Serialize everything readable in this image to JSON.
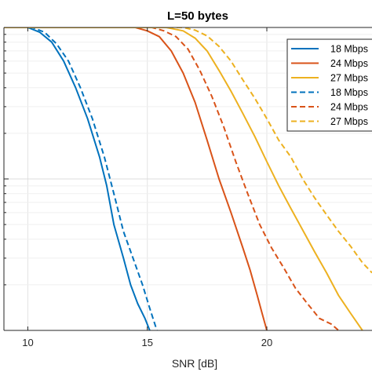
{
  "chart_data": {
    "type": "line",
    "title": "L=50 bytes",
    "xlabel": "SNR [dB]",
    "ylabel": "",
    "xlim": [
      9,
      24.4
    ],
    "ylim_log10": [
      -2,
      0
    ],
    "y_scale": "log",
    "x_ticks": [
      10,
      15,
      20
    ],
    "grid": true,
    "legend_position": "top-right",
    "series": [
      {
        "name": "18 Mbps",
        "color": "#0072BD",
        "style": "solid",
        "x": [
          9,
          10.0,
          10.5,
          11.0,
          11.5,
          12.0,
          12.5,
          13.0,
          13.3,
          13.6,
          14.0,
          14.3,
          14.6,
          14.9,
          15.1
        ],
        "y": [
          1,
          1,
          0.93,
          0.8,
          0.6,
          0.4,
          0.25,
          0.14,
          0.09,
          0.05,
          0.03,
          0.02,
          0.015,
          0.012,
          0.01
        ]
      },
      {
        "name": "24 Mbps",
        "color": "#D95319",
        "style": "solid",
        "x": [
          9,
          14.5,
          15.0,
          15.5,
          16.0,
          16.5,
          17.0,
          17.5,
          18.0,
          18.5,
          19.0,
          19.3,
          19.6,
          19.8,
          20.0
        ],
        "y": [
          1,
          1,
          0.95,
          0.87,
          0.7,
          0.5,
          0.32,
          0.18,
          0.1,
          0.06,
          0.035,
          0.025,
          0.017,
          0.013,
          0.01
        ]
      },
      {
        "name": "27 Mbps",
        "color": "#EDB120",
        "style": "solid",
        "x": [
          9,
          15.8,
          16.5,
          17.0,
          17.5,
          18.0,
          18.5,
          19.0,
          19.5,
          20.0,
          20.5,
          21.0,
          21.5,
          22.0,
          22.5,
          23.0,
          23.5,
          24.0
        ],
        "y": [
          1,
          1,
          0.95,
          0.85,
          0.7,
          0.52,
          0.38,
          0.27,
          0.19,
          0.13,
          0.09,
          0.064,
          0.046,
          0.033,
          0.024,
          0.017,
          0.013,
          0.01
        ]
      },
      {
        "name": "18 Mbps",
        "color": "#0072BD",
        "style": "dashed",
        "x": [
          9,
          10.2,
          10.7,
          11.2,
          11.7,
          12.2,
          12.7,
          13.2,
          13.6,
          14.0,
          14.4,
          14.8,
          15.1,
          15.4
        ],
        "y": [
          1,
          1,
          0.93,
          0.78,
          0.6,
          0.4,
          0.25,
          0.14,
          0.08,
          0.045,
          0.03,
          0.02,
          0.014,
          0.01
        ]
      },
      {
        "name": "24 Mbps",
        "color": "#D95319",
        "style": "dashed",
        "x": [
          9,
          15.2,
          15.7,
          16.2,
          16.7,
          17.2,
          17.7,
          18.2,
          18.7,
          19.2,
          19.7,
          20.2,
          20.7,
          21.2,
          21.7,
          22.2,
          22.7,
          23.0
        ],
        "y": [
          1,
          1,
          0.95,
          0.87,
          0.72,
          0.52,
          0.35,
          0.22,
          0.13,
          0.08,
          0.05,
          0.035,
          0.026,
          0.019,
          0.015,
          0.012,
          0.011,
          0.01
        ]
      },
      {
        "name": "27 Mbps",
        "color": "#EDB120",
        "style": "dashed",
        "x": [
          9,
          16.5,
          17.0,
          17.5,
          18.0,
          18.5,
          19.0,
          19.5,
          20.0,
          20.5,
          21.0,
          21.5,
          22.0,
          22.5,
          23.0,
          23.5,
          24.0,
          24.4
        ],
        "y": [
          1,
          1,
          0.96,
          0.88,
          0.75,
          0.6,
          0.45,
          0.34,
          0.25,
          0.18,
          0.14,
          0.1,
          0.075,
          0.058,
          0.045,
          0.036,
          0.028,
          0.024
        ]
      }
    ]
  }
}
